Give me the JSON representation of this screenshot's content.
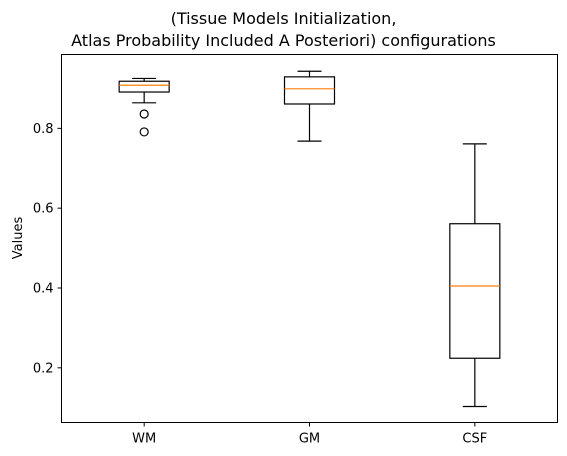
{
  "chart_data": {
    "type": "box",
    "title_lines": [
      "(Tissue Models Initialization,",
      "Atlas Probability Included A Posteriori) configurations"
    ],
    "xlabel": "",
    "ylabel": "Values",
    "categories": [
      "WM",
      "GM",
      "CSF"
    ],
    "boxes": [
      {
        "name": "WM",
        "whisker_low": 0.864,
        "q1": 0.891,
        "median": 0.908,
        "q3": 0.918,
        "whisker_high": 0.925,
        "outliers": [
          0.836,
          0.791
        ]
      },
      {
        "name": "GM",
        "whisker_low": 0.768,
        "q1": 0.861,
        "median": 0.899,
        "q3": 0.929,
        "whisker_high": 0.943,
        "outliers": []
      },
      {
        "name": "CSF",
        "whisker_low": 0.103,
        "q1": 0.224,
        "median": 0.405,
        "q3": 0.561,
        "whisker_high": 0.761,
        "outliers": []
      }
    ],
    "ylim": [
      0.063,
      0.985
    ],
    "yticks": [
      0.2,
      0.4,
      0.6,
      0.8
    ],
    "ytick_labels": [
      "0.2",
      "0.4",
      "0.6",
      "0.8"
    ],
    "grid": false,
    "colors": {
      "box": "#000000",
      "median": "#ff7f0e",
      "background": "#ffffff"
    }
  }
}
